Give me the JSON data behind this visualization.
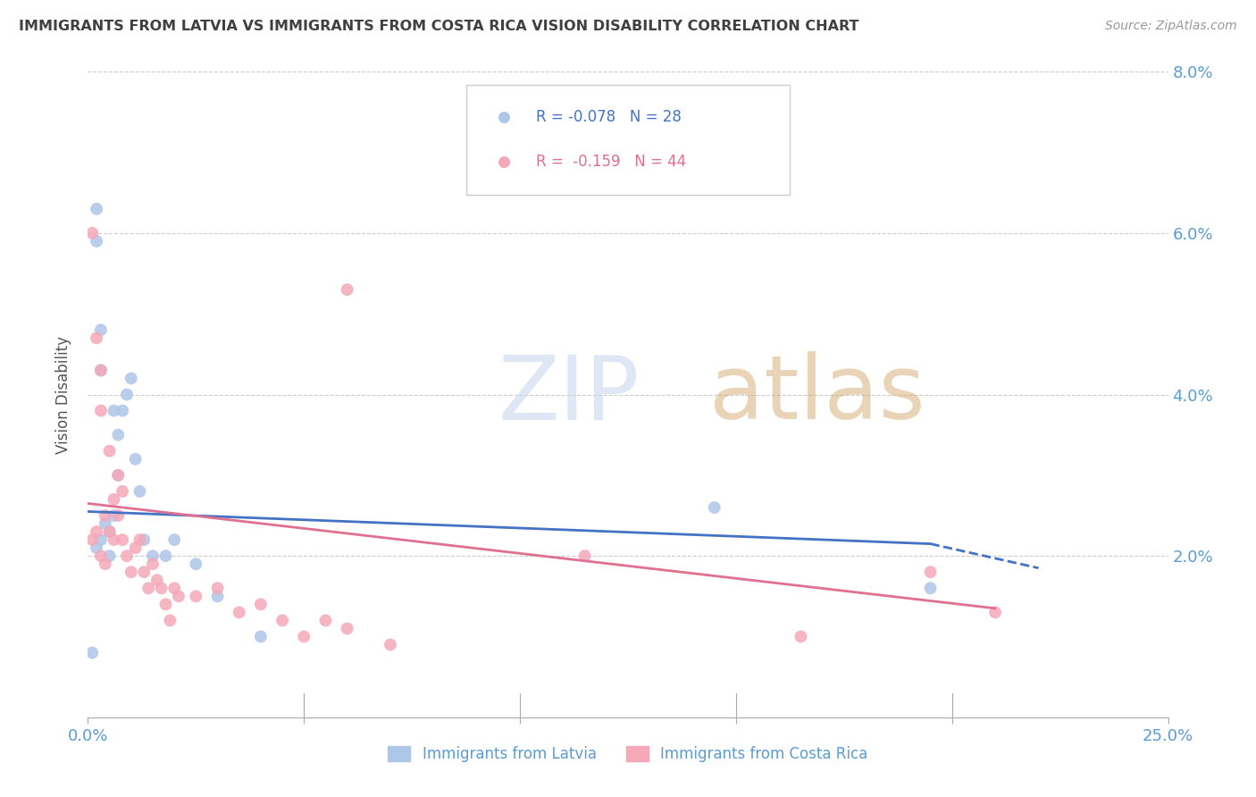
{
  "title": "IMMIGRANTS FROM LATVIA VS IMMIGRANTS FROM COSTA RICA VISION DISABILITY CORRELATION CHART",
  "source": "Source: ZipAtlas.com",
  "ylabel": "Vision Disability",
  "xlim": [
    0.0,
    0.25
  ],
  "ylim": [
    0.0,
    0.08
  ],
  "legend_label1": "Immigrants from Latvia",
  "legend_label2": "Immigrants from Costa Rica",
  "latvia_color": "#aec6e8",
  "costarica_color": "#f4a8b8",
  "latvia_line_color": "#4472c4",
  "costarica_line_color": "#e07090",
  "title_color": "#404040",
  "axis_color": "#5b9bd5",
  "watermark_zip_color": "#c8d8ec",
  "watermark_atlas_color": "#d8a870",
  "latvia_R": -0.078,
  "latvia_N": 28,
  "costarica_R": -0.159,
  "costarica_N": 44,
  "latvia_x": [
    0.001,
    0.002,
    0.002,
    0.002,
    0.003,
    0.003,
    0.003,
    0.004,
    0.005,
    0.005,
    0.006,
    0.006,
    0.007,
    0.007,
    0.008,
    0.009,
    0.01,
    0.011,
    0.012,
    0.013,
    0.015,
    0.018,
    0.02,
    0.025,
    0.03,
    0.04,
    0.145,
    0.195
  ],
  "latvia_y": [
    0.008,
    0.063,
    0.059,
    0.021,
    0.048,
    0.043,
    0.022,
    0.024,
    0.023,
    0.02,
    0.025,
    0.038,
    0.03,
    0.035,
    0.038,
    0.04,
    0.042,
    0.032,
    0.028,
    0.022,
    0.02,
    0.02,
    0.022,
    0.019,
    0.015,
    0.01,
    0.026,
    0.016
  ],
  "costarica_x": [
    0.001,
    0.001,
    0.002,
    0.002,
    0.003,
    0.003,
    0.003,
    0.004,
    0.004,
    0.005,
    0.005,
    0.006,
    0.006,
    0.007,
    0.007,
    0.008,
    0.008,
    0.009,
    0.01,
    0.011,
    0.012,
    0.013,
    0.014,
    0.015,
    0.016,
    0.017,
    0.018,
    0.019,
    0.02,
    0.021,
    0.025,
    0.03,
    0.035,
    0.04,
    0.045,
    0.05,
    0.055,
    0.06,
    0.07,
    0.06,
    0.115,
    0.165,
    0.195,
    0.21
  ],
  "costarica_y": [
    0.06,
    0.022,
    0.047,
    0.023,
    0.043,
    0.038,
    0.02,
    0.019,
    0.025,
    0.023,
    0.033,
    0.027,
    0.022,
    0.03,
    0.025,
    0.028,
    0.022,
    0.02,
    0.018,
    0.021,
    0.022,
    0.018,
    0.016,
    0.019,
    0.017,
    0.016,
    0.014,
    0.012,
    0.016,
    0.015,
    0.015,
    0.016,
    0.013,
    0.014,
    0.012,
    0.01,
    0.012,
    0.011,
    0.009,
    0.053,
    0.02,
    0.01,
    0.018,
    0.013
  ],
  "trend_lv_x0": 0.0,
  "trend_lv_x1": 0.195,
  "trend_lv_x_dash_end": 0.22,
  "trend_cr_x0": 0.0,
  "trend_cr_x1": 0.21
}
